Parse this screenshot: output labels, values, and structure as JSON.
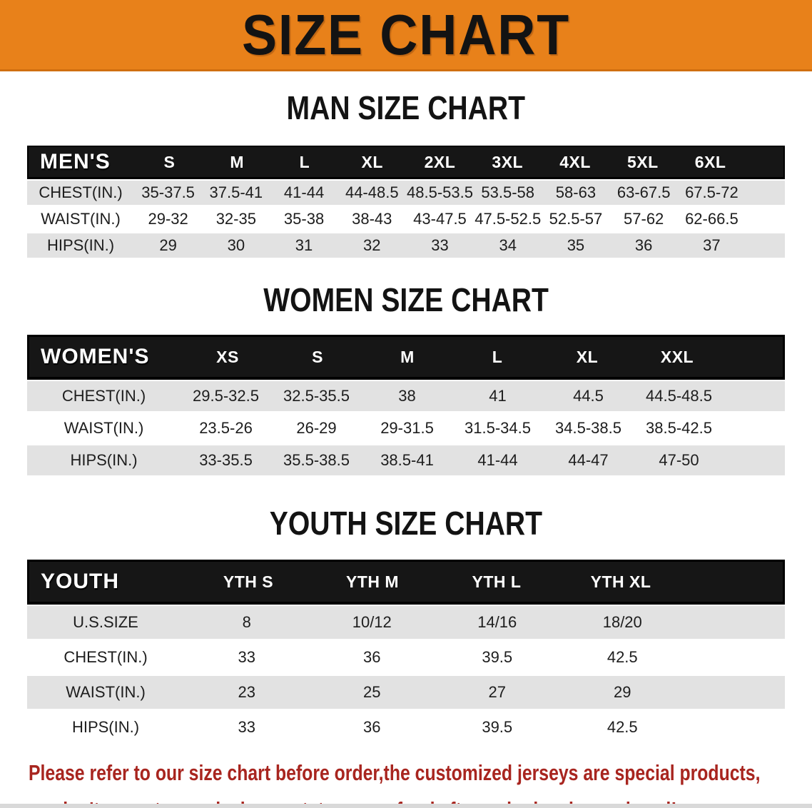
{
  "banner": {
    "title": "SIZE CHART",
    "bg_color": "#E8811A",
    "text_color": "#131313"
  },
  "colors": {
    "header_bar": "#161616",
    "row_gray": "#E2E2E2",
    "row_white": "#FFFFFF",
    "note_red": "#A8251F"
  },
  "sections": [
    {
      "heading": "MAN SIZE CHART",
      "table": {
        "label": "MEN'S",
        "columns": [
          "S",
          "M",
          "L",
          "XL",
          "2XL",
          "3XL",
          "4XL",
          "5XL",
          "6XL"
        ],
        "rows": [
          {
            "label": "CHEST(IN.)",
            "values": [
              "35-37.5",
              "37.5-41",
              "41-44",
              "44-48.5",
              "48.5-53.5",
              "53.5-58",
              "58-63",
              "63-67.5",
              "67.5-72"
            ]
          },
          {
            "label": "WAIST(IN.)",
            "values": [
              "29-32",
              "32-35",
              "35-38",
              "38-43",
              "43-47.5",
              "47.5-52.5",
              "52.5-57",
              "57-62",
              "62-66.5"
            ]
          },
          {
            "label": "HIPS(IN.)",
            "values": [
              "29",
              "30",
              "31",
              "32",
              "33",
              "34",
              "35",
              "36",
              "37"
            ]
          }
        ]
      }
    },
    {
      "heading": "WOMEN SIZE CHART",
      "table": {
        "label": "WOMEN'S",
        "columns": [
          "XS",
          "S",
          "M",
          "L",
          "XL",
          "XXL"
        ],
        "rows": [
          {
            "label": "CHEST(IN.)",
            "values": [
              "29.5-32.5",
              "32.5-35.5",
              "38",
              "41",
              "44.5",
              "44.5-48.5"
            ]
          },
          {
            "label": "WAIST(IN.)",
            "values": [
              "23.5-26",
              "26-29",
              "29-31.5",
              "31.5-34.5",
              "34.5-38.5",
              "38.5-42.5"
            ]
          },
          {
            "label": "HIPS(IN.)",
            "values": [
              "33-35.5",
              "35.5-38.5",
              "38.5-41",
              "41-44",
              "44-47",
              "47-50"
            ]
          }
        ]
      }
    },
    {
      "heading": "YOUTH SIZE CHART",
      "table": {
        "label": "YOUTH",
        "columns": [
          "YTH S",
          "YTH M",
          "YTH L",
          "YTH XL"
        ],
        "rows": [
          {
            "label": "U.S.SIZE",
            "values": [
              "8",
              "10/12",
              "14/16",
              "18/20"
            ]
          },
          {
            "label": "CHEST(IN.)",
            "values": [
              "33",
              "36",
              "39.5",
              "42.5"
            ]
          },
          {
            "label": "WAIST(IN.)",
            "values": [
              "23",
              "25",
              "27",
              "29"
            ]
          },
          {
            "label": "HIPS(IN.)",
            "values": [
              "33",
              "36",
              "39.5",
              "42.5"
            ]
          }
        ]
      }
    }
  ],
  "footer": {
    "line1": "Please refer to our size chart before order,the customized jerseys are special products,",
    "line2": "we don't accept cancel, change, teturn or refund after order has been placed!"
  }
}
